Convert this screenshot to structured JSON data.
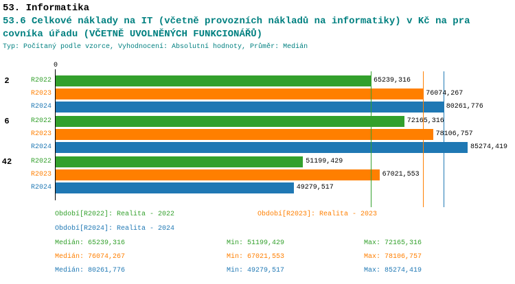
{
  "header": {
    "line1": "53. Informatika",
    "line2": "53.6 Celkové náklady na IT (včetně provozních nákladů na informatiky) v Kč na pra",
    "line3": "covníka úřadu (VČETNĚ UVOLNĚNÝCH FUNKCIONÁŘŮ)",
    "meta": "Typ: Počítaný podle vzorce, Vyhodnocení: Absolutní hodnoty, Průměr: Medián"
  },
  "colors": {
    "green": "#33a02c",
    "orange": "#ff7f00",
    "blue": "#1f78b4",
    "teal": "#008080",
    "text": "#000000"
  },
  "chart_data": {
    "type": "bar",
    "orientation": "horizontal",
    "x_axis": {
      "zero_label": "0",
      "xmin": 0,
      "xmax": 85274.419
    },
    "grid": false,
    "legend_position": "bottom",
    "categories": [
      "2",
      "6",
      "42"
    ],
    "series": [
      {
        "name": "R2022",
        "color": "#33a02c"
      },
      {
        "name": "R2023",
        "color": "#ff7f00"
      },
      {
        "name": "R2024",
        "color": "#1f78b4"
      }
    ],
    "values": [
      [
        65239.316,
        76074.267,
        80261.776
      ],
      [
        72165.316,
        78106.757,
        85274.419
      ],
      [
        51199.429,
        67021.553,
        49279.517
      ]
    ],
    "value_labels": [
      [
        "65239,316",
        "76074,267",
        "80261,776"
      ],
      [
        "72165,316",
        "78106,757",
        "85274,419"
      ],
      [
        "51199,429",
        "67021,553",
        "49279,517"
      ]
    ],
    "median_lines": [
      {
        "series": "R2022",
        "value": 65239.316,
        "color": "#33a02c"
      },
      {
        "series": "R2023",
        "value": 76074.267,
        "color": "#ff7f00"
      },
      {
        "series": "R2024",
        "value": 80261.776,
        "color": "#1f78b4"
      }
    ]
  },
  "legend": {
    "items": [
      {
        "label": "Období[R2022]: Realita - 2022",
        "color": "#33a02c"
      },
      {
        "label": "Období[R2023]: Realita - 2023",
        "color": "#ff7f00"
      },
      {
        "label": "Období[R2024]: Realita - 2024",
        "color": "#1f78b4"
      }
    ]
  },
  "stats": {
    "rows": [
      {
        "median": "Medián: 65239,316",
        "min": "Min: 51199,429",
        "max": "Max: 72165,316",
        "color": "#33a02c"
      },
      {
        "median": "Medián: 76074,267",
        "min": "Min: 67021,553",
        "max": "Max: 78106,757",
        "color": "#ff7f00"
      },
      {
        "median": "Medián: 80261,776",
        "min": "Min: 49279,517",
        "max": "Max: 85274,419",
        "color": "#1f78b4"
      }
    ]
  }
}
